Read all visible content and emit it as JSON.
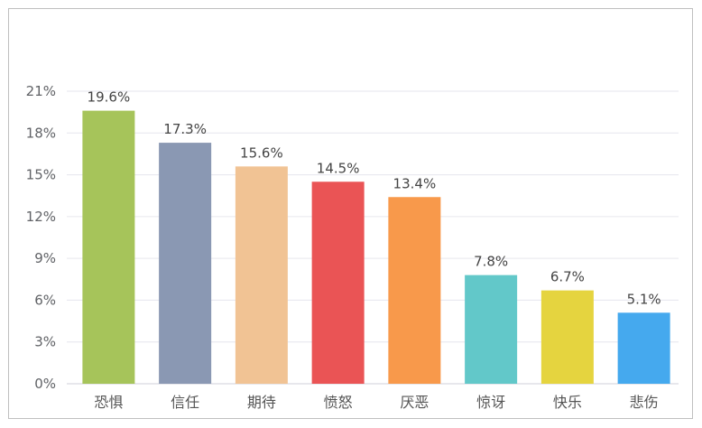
{
  "chart_data": {
    "type": "bar",
    "title": "",
    "xlabel": "",
    "ylabel": "",
    "categories": [
      "恐惧",
      "信任",
      "期待",
      "愤怒",
      "厌恶",
      "惊讶",
      "快乐",
      "悲伤"
    ],
    "values": [
      19.6,
      17.3,
      15.6,
      14.5,
      13.4,
      7.8,
      6.7,
      5.1
    ],
    "data_labels": [
      "19.6%",
      "17.3%",
      "15.6%",
      "14.5%",
      "13.4%",
      "7.8%",
      "6.7%",
      "5.1%"
    ],
    "colors": [
      "#a6c45a",
      "#8a98b3",
      "#f1c394",
      "#ea5455",
      "#f8994b",
      "#62c8c9",
      "#e5d43f",
      "#45a9ee"
    ],
    "ylim": [
      0,
      21
    ],
    "yticks": [
      0,
      3,
      6,
      9,
      12,
      15,
      18,
      21
    ],
    "ytick_labels": [
      "0%",
      "3%",
      "6%",
      "9%",
      "12%",
      "15%",
      "18%",
      "21%"
    ],
    "grid": true,
    "legend": "none"
  }
}
